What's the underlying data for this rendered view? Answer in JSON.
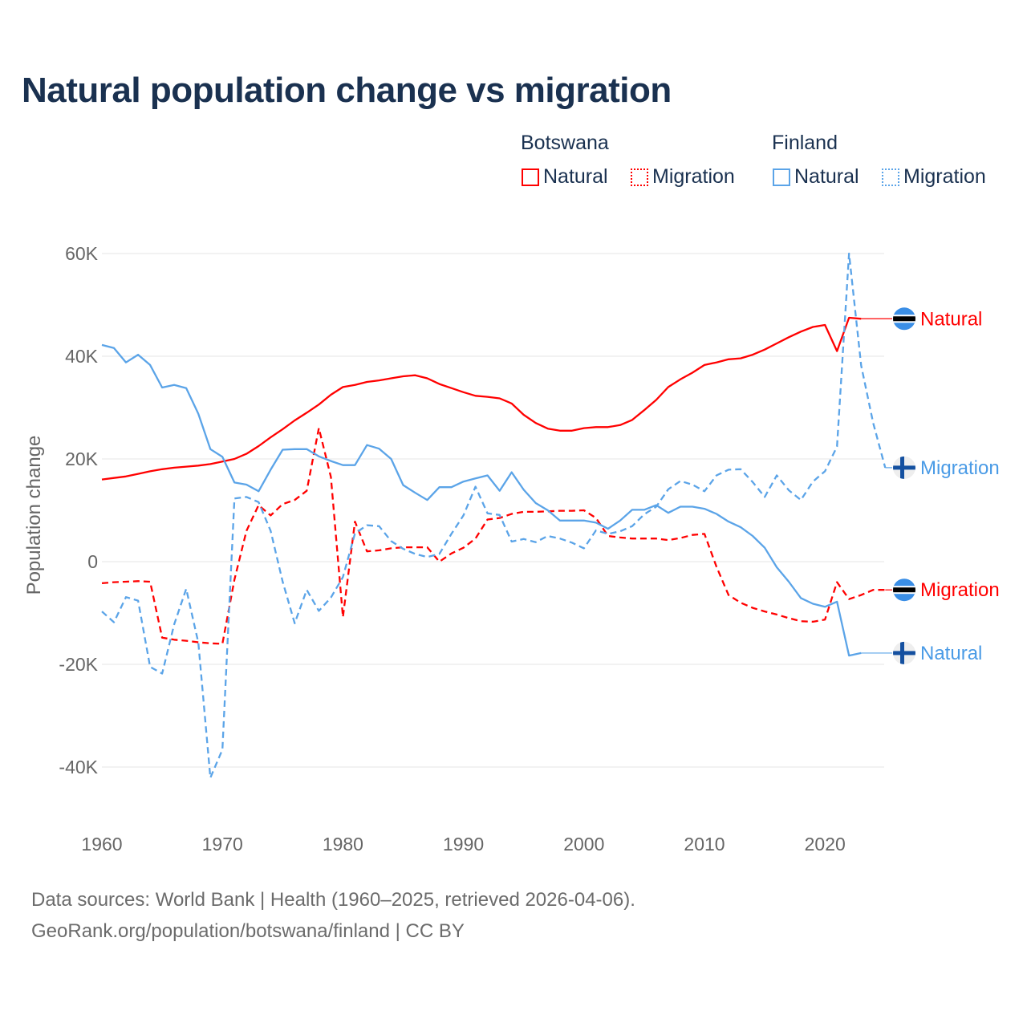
{
  "title": "Natural population change vs migration",
  "legend": {
    "groups": [
      {
        "name": "Botswana",
        "items": [
          "Natural",
          "Migration"
        ],
        "color": "#ff0000"
      },
      {
        "name": "Finland",
        "items": [
          "Natural",
          "Migration"
        ],
        "color": "#5ba4e8"
      }
    ]
  },
  "footer": {
    "line1": "Data sources: World Bank | Health (1960–2025, retrieved 2026-04-06).",
    "line2": "GeoRank.org/population/botswana/finland | CC BY"
  },
  "chart_data": {
    "type": "line",
    "title": "Natural population change vs migration",
    "xlabel": "",
    "ylabel": "Population change",
    "xlim": [
      1960,
      2025
    ],
    "ylim": [
      -50000,
      60000
    ],
    "x_ticks": [
      "1960",
      "1970",
      "1980",
      "1990",
      "2000",
      "2010",
      "2020"
    ],
    "y_ticks": [
      {
        "v": 60000,
        "label": "60K"
      },
      {
        "v": 40000,
        "label": "40K"
      },
      {
        "v": 20000,
        "label": "20K"
      },
      {
        "v": 0,
        "label": "0"
      },
      {
        "v": -20000,
        "label": "-20K"
      },
      {
        "v": -40000,
        "label": "-40K"
      }
    ],
    "start_year": 1960,
    "units": "thousands",
    "series": [
      {
        "name": "Botswana Natural",
        "label": "Natural",
        "country": "Botswana",
        "color": "#ff0000",
        "dash": false,
        "end_value": 47.3,
        "values": [
          16.0,
          16.3,
          16.6,
          17.1,
          17.6,
          18.0,
          18.3,
          18.5,
          18.7,
          19.0,
          19.5,
          20.0,
          21.0,
          22.5,
          24.2,
          25.8,
          27.5,
          29.0,
          30.6,
          32.5,
          34.0,
          34.4,
          35.0,
          35.3,
          35.7,
          36.1,
          36.3,
          35.7,
          34.6,
          33.8,
          33.0,
          32.3,
          32.1,
          31.8,
          30.8,
          28.6,
          27.0,
          25.9,
          25.5,
          25.5,
          26.0,
          26.2,
          26.2,
          26.6,
          27.6,
          29.5,
          31.5,
          34.0,
          35.5,
          36.8,
          38.3,
          38.8,
          39.4,
          39.6,
          40.3,
          41.3,
          42.5,
          43.7,
          44.8,
          45.7,
          46.1,
          41.0,
          47.5,
          47.3
        ]
      },
      {
        "name": "Botswana Migration",
        "label": "Migration",
        "country": "Botswana",
        "color": "#ff0000",
        "dash": true,
        "end_value": -5.5,
        "values": [
          -4.2,
          -4.0,
          -3.9,
          -3.8,
          -3.9,
          -14.8,
          -15.2,
          -15.4,
          -15.7,
          -15.9,
          -16.0,
          -3.5,
          6.0,
          11.0,
          9.0,
          11.2,
          12.0,
          13.8,
          26.0,
          16.5,
          -10.8,
          7.8,
          2.0,
          2.2,
          2.6,
          2.8,
          2.8,
          2.8,
          0.0,
          1.6,
          2.7,
          4.5,
          8.2,
          8.5,
          9.3,
          9.7,
          9.7,
          9.8,
          9.9,
          9.9,
          10.0,
          8.5,
          5.0,
          4.7,
          4.5,
          4.5,
          4.5,
          4.2,
          4.6,
          5.2,
          5.4,
          -1.0,
          -6.5,
          -8.0,
          -9.0,
          -9.7,
          -10.3,
          -11.0,
          -11.6,
          -11.7,
          -11.3,
          -4.0,
          -7.3,
          -6.5,
          -5.5,
          -5.5
        ]
      },
      {
        "name": "Finland Natural",
        "label": "Natural",
        "country": "Finland",
        "color": "#5ba4e8",
        "dash": false,
        "end_value": -17.8,
        "values": [
          42.2,
          41.6,
          38.8,
          40.3,
          38.3,
          33.9,
          34.4,
          33.8,
          28.8,
          21.9,
          20.4,
          15.4,
          15.0,
          13.7,
          17.9,
          21.8,
          21.9,
          21.9,
          20.5,
          19.6,
          18.8,
          18.8,
          22.7,
          22.0,
          20.0,
          14.9,
          13.4,
          12.0,
          14.5,
          14.5,
          15.6,
          16.2,
          16.8,
          13.8,
          17.4,
          14.0,
          11.4,
          10.0,
          8.0,
          8.0,
          8.0,
          7.6,
          6.4,
          8.0,
          10.1,
          10.1,
          11.0,
          9.5,
          10.7,
          10.7,
          10.3,
          9.3,
          7.8,
          6.7,
          5.0,
          2.7,
          -1.1,
          -3.9,
          -7.1,
          -8.2,
          -8.8,
          -7.8,
          -18.3,
          -17.8
        ]
      },
      {
        "name": "Finland Migration",
        "label": "Migration",
        "country": "Finland",
        "color": "#5ba4e8",
        "dash": true,
        "end_value": 18.3,
        "values": [
          -9.7,
          -11.8,
          -6.9,
          -7.6,
          -20.5,
          -21.8,
          -12.2,
          -5.3,
          -15.8,
          -42.1,
          -36.6,
          12.3,
          12.6,
          11.6,
          6.0,
          -3.9,
          -12.0,
          -5.5,
          -9.6,
          -7.0,
          -3.0,
          5.5,
          7.1,
          6.9,
          4.0,
          2.5,
          1.5,
          0.9,
          1.5,
          5.4,
          9.0,
          14.6,
          9.4,
          9.1,
          3.9,
          4.4,
          3.8,
          5.0,
          4.5,
          3.7,
          2.6,
          6.1,
          5.4,
          5.9,
          6.9,
          9.2,
          10.7,
          14.1,
          15.7,
          15.0,
          13.7,
          16.8,
          17.9,
          18.0,
          15.5,
          12.6,
          16.8,
          13.9,
          12.0,
          15.6,
          17.6,
          22.4,
          60.0,
          38.2,
          27.0,
          18.3
        ]
      }
    ]
  }
}
